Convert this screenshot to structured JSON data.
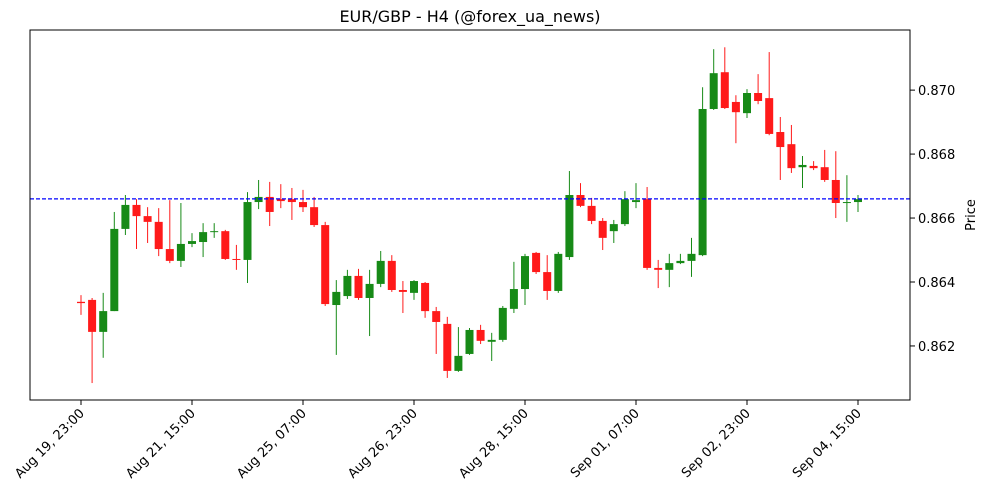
{
  "chart_data": {
    "type": "candlestick",
    "title": "EUR/GBP - H4 (@forex_ua_news)",
    "y_label": "Price",
    "categories": [
      "Aug 19, 23:00",
      null,
      null,
      null,
      null,
      null,
      null,
      null,
      null,
      null,
      "Aug 21, 15:00",
      null,
      null,
      null,
      null,
      null,
      null,
      null,
      null,
      null,
      "Aug 25, 07:00",
      null,
      null,
      null,
      null,
      null,
      null,
      null,
      null,
      null,
      "Aug 26, 23:00",
      null,
      null,
      null,
      null,
      null,
      null,
      null,
      null,
      null,
      "Aug 28, 15:00",
      null,
      null,
      null,
      null,
      null,
      null,
      null,
      null,
      null,
      "Sep 01, 07:00",
      null,
      null,
      null,
      null,
      null,
      null,
      null,
      null,
      null,
      "Sep 02, 23:00",
      null,
      null,
      null,
      null,
      null,
      null,
      null,
      null,
      null,
      "Sep 04, 15:00"
    ],
    "open": [
      0.86338,
      0.86344,
      0.86244,
      0.86309,
      0.86566,
      0.86641,
      0.86606,
      0.86588,
      0.86503,
      0.86466,
      0.86519,
      0.86525,
      0.86556,
      0.86559,
      0.86472,
      0.86469,
      0.8665,
      0.86666,
      0.86659,
      0.86659,
      0.8665,
      0.86634,
      0.86578,
      0.86328,
      0.86356,
      0.86419,
      0.8635,
      0.86394,
      0.86466,
      0.86375,
      0.86366,
      0.86397,
      0.86309,
      0.86269,
      0.86122,
      0.86175,
      0.8625,
      0.86213,
      0.86219,
      0.86316,
      0.86378,
      0.86491,
      0.86431,
      0.86372,
      0.86478,
      0.86672,
      0.86638,
      0.86591,
      0.86559,
      0.86581,
      0.8665,
      0.86659,
      0.86444,
      0.86438,
      0.86459,
      0.86466,
      0.86484,
      0.86941,
      0.87056,
      0.86963,
      0.86928,
      0.86991,
      0.86975,
      0.86869,
      0.86831,
      0.86759,
      0.86763,
      0.86759,
      0.86719,
      0.86647,
      0.8665
    ],
    "high": [
      0.86359,
      0.8635,
      0.86366,
      0.86619,
      0.86672,
      0.86659,
      0.86634,
      0.86631,
      0.86656,
      0.86647,
      0.86553,
      0.86584,
      0.86584,
      0.86563,
      0.86516,
      0.86681,
      0.86719,
      0.86713,
      0.86706,
      0.86694,
      0.86688,
      0.86666,
      0.86588,
      0.86406,
      0.86438,
      0.86441,
      0.86438,
      0.86497,
      0.86484,
      0.86403,
      0.86406,
      0.864,
      0.86322,
      0.86291,
      0.86259,
      0.86256,
      0.86266,
      0.86241,
      0.86325,
      0.86463,
      0.86488,
      0.86494,
      0.86484,
      0.86494,
      0.86747,
      0.86709,
      0.86663,
      0.866,
      0.86594,
      0.86684,
      0.86709,
      0.86697,
      0.86469,
      0.86488,
      0.86488,
      0.86538,
      0.87009,
      0.87128,
      0.87134,
      0.86984,
      0.87003,
      0.8705,
      0.87119,
      0.86916,
      0.86891,
      0.86794,
      0.86778,
      0.86813,
      0.86809,
      0.86734,
      0.86672
    ],
    "low": [
      0.86297,
      0.86084,
      0.86163,
      0.86309,
      0.86547,
      0.86503,
      0.86522,
      0.86481,
      0.86459,
      0.86447,
      0.86509,
      0.86478,
      0.86538,
      0.86469,
      0.86438,
      0.86397,
      0.86628,
      0.86575,
      0.86631,
      0.86594,
      0.86619,
      0.86572,
      0.86325,
      0.86172,
      0.86347,
      0.86344,
      0.86231,
      0.86384,
      0.86369,
      0.86303,
      0.86344,
      0.86288,
      0.86175,
      0.861,
      0.86119,
      0.86172,
      0.86206,
      0.86153,
      0.86213,
      0.86303,
      0.86328,
      0.86425,
      0.86344,
      0.86366,
      0.86469,
      0.86634,
      0.86581,
      0.865,
      0.86522,
      0.86575,
      0.86631,
      0.86438,
      0.86381,
      0.86384,
      0.86456,
      0.86416,
      0.86481,
      0.86938,
      0.86941,
      0.86834,
      0.86913,
      0.86956,
      0.86859,
      0.86719,
      0.86741,
      0.86694,
      0.8675,
      0.86713,
      0.866,
      0.86588,
      0.86619
    ],
    "close": [
      0.86334,
      0.86244,
      0.86309,
      0.86566,
      0.86641,
      0.86606,
      0.86588,
      0.86503,
      0.86466,
      0.86519,
      0.86528,
      0.86556,
      0.86559,
      0.86472,
      0.86469,
      0.8665,
      0.86666,
      0.86619,
      0.86653,
      0.8665,
      0.86634,
      0.86578,
      0.86331,
      0.86369,
      0.86419,
      0.8635,
      0.86394,
      0.86466,
      0.86375,
      0.86369,
      0.86403,
      0.86309,
      0.86275,
      0.86122,
      0.86169,
      0.8625,
      0.86216,
      0.86219,
      0.86319,
      0.86378,
      0.86481,
      0.86431,
      0.86372,
      0.86488,
      0.86672,
      0.86638,
      0.86591,
      0.86538,
      0.86581,
      0.86659,
      0.86656,
      0.86444,
      0.86438,
      0.86459,
      0.86466,
      0.86488,
      0.86941,
      0.87053,
      0.86944,
      0.86931,
      0.86991,
      0.86966,
      0.86863,
      0.86822,
      0.86756,
      0.86766,
      0.86756,
      0.86719,
      0.86647,
      0.8665,
      0.86659
    ],
    "up_color": "#178a17",
    "down_color": "#ff1a1a",
    "hline": {
      "value": 0.8666,
      "color": "#0000ff",
      "style": "dashed"
    },
    "ylim": [
      0.86031,
      0.87188
    ],
    "yticks": [
      0.862,
      0.864,
      0.866,
      0.868,
      {
        "value": 0.87,
        "label": "0.870"
      }
    ]
  }
}
